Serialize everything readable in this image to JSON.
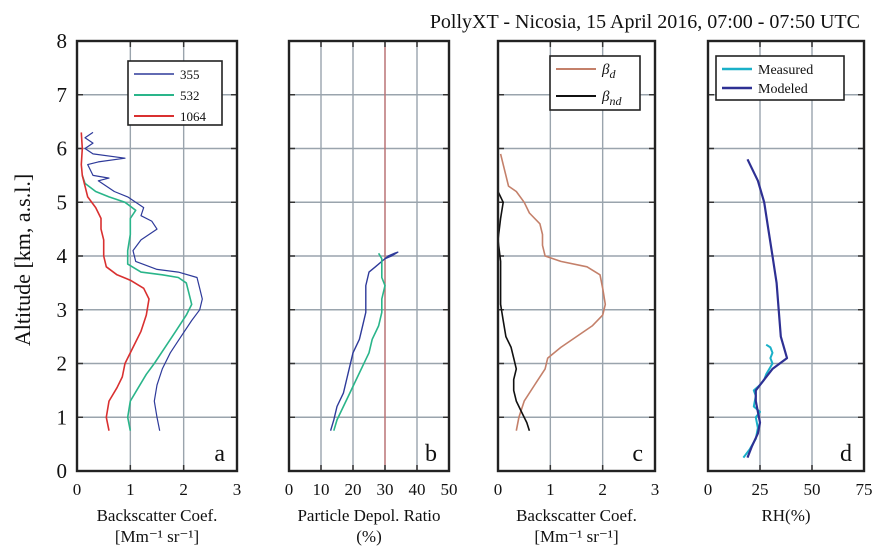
{
  "title": "PollyXT - Nicosia, 15 April 2016, 07:00 - 07:50 UTC",
  "ylabel": "Altitude  [km, a.s.l.]",
  "chart_data": [
    {
      "type": "line",
      "letter": "a",
      "xlabel_lines": [
        "Backscatter Coef.",
        "[Mm⁻¹ sr⁻¹]"
      ],
      "xlim": [
        0,
        3
      ],
      "xticks": [
        "0",
        "1",
        "2",
        "3"
      ],
      "ylim": [
        0,
        8
      ],
      "yticks": [
        "0",
        "1",
        "2",
        "3",
        "4",
        "5",
        "6",
        "7",
        "8"
      ],
      "grid": true,
      "legend": {
        "position": "top-right",
        "entries": [
          "355",
          "532",
          "1064"
        ]
      },
      "series": [
        {
          "name": "355",
          "color": "#2e3a9a",
          "width": 1.2,
          "points": [
            [
              1.55,
              0.75
            ],
            [
              1.5,
              1.0
            ],
            [
              1.45,
              1.3
            ],
            [
              1.5,
              1.6
            ],
            [
              1.6,
              1.9
            ],
            [
              1.75,
              2.2
            ],
            [
              1.95,
              2.5
            ],
            [
              2.15,
              2.8
            ],
            [
              2.3,
              3.0
            ],
            [
              2.35,
              3.2
            ],
            [
              2.3,
              3.4
            ],
            [
              2.25,
              3.6
            ],
            [
              1.9,
              3.7
            ],
            [
              1.5,
              3.75
            ],
            [
              1.1,
              3.9
            ],
            [
              1.05,
              4.1
            ],
            [
              1.2,
              4.3
            ],
            [
              1.35,
              4.4
            ],
            [
              1.5,
              4.5
            ],
            [
              1.4,
              4.65
            ],
            [
              1.2,
              4.75
            ],
            [
              1.25,
              4.9
            ],
            [
              1.1,
              5.0
            ],
            [
              0.95,
              5.1
            ],
            [
              0.7,
              5.2
            ],
            [
              0.55,
              5.3
            ],
            [
              0.4,
              5.4
            ],
            [
              0.6,
              5.45
            ],
            [
              0.3,
              5.5
            ],
            [
              0.2,
              5.7
            ],
            [
              0.4,
              5.75
            ],
            [
              0.9,
              5.82
            ],
            [
              0.3,
              5.9
            ],
            [
              0.15,
              6.0
            ],
            [
              0.3,
              6.1
            ],
            [
              0.15,
              6.2
            ],
            [
              0.3,
              6.3
            ]
          ]
        },
        {
          "name": "532",
          "color": "#2ab58a",
          "width": 1.6,
          "points": [
            [
              1.0,
              0.75
            ],
            [
              0.95,
              1.0
            ],
            [
              1.0,
              1.3
            ],
            [
              1.15,
              1.55
            ],
            [
              1.3,
              1.8
            ],
            [
              1.45,
              2.0
            ],
            [
              1.65,
              2.3
            ],
            [
              1.85,
              2.6
            ],
            [
              2.05,
              2.9
            ],
            [
              2.15,
              3.1
            ],
            [
              2.1,
              3.3
            ],
            [
              2.05,
              3.5
            ],
            [
              1.9,
              3.6
            ],
            [
              1.6,
              3.65
            ],
            [
              1.2,
              3.7
            ],
            [
              0.95,
              3.85
            ],
            [
              0.95,
              4.1
            ],
            [
              1.0,
              4.4
            ],
            [
              1.0,
              4.7
            ],
            [
              1.1,
              4.85
            ],
            [
              0.9,
              5.0
            ],
            [
              0.6,
              5.1
            ],
            [
              0.35,
              5.2
            ],
            [
              0.15,
              5.35
            ],
            [
              0.1,
              5.5
            ]
          ]
        },
        {
          "name": "1064",
          "color": "#d93030",
          "width": 1.6,
          "points": [
            [
              0.6,
              0.75
            ],
            [
              0.55,
              1.0
            ],
            [
              0.6,
              1.3
            ],
            [
              0.75,
              1.55
            ],
            [
              0.85,
              1.75
            ],
            [
              0.9,
              2.0
            ],
            [
              1.05,
              2.3
            ],
            [
              1.2,
              2.6
            ],
            [
              1.3,
              2.9
            ],
            [
              1.35,
              3.2
            ],
            [
              1.25,
              3.4
            ],
            [
              1.0,
              3.55
            ],
            [
              0.75,
              3.65
            ],
            [
              0.55,
              3.8
            ],
            [
              0.5,
              4.0
            ],
            [
              0.5,
              4.3
            ],
            [
              0.45,
              4.5
            ],
            [
              0.45,
              4.7
            ],
            [
              0.35,
              4.9
            ],
            [
              0.2,
              5.1
            ],
            [
              0.15,
              5.3
            ],
            [
              0.1,
              5.5
            ],
            [
              0.08,
              5.7
            ],
            [
              0.1,
              6.0
            ],
            [
              0.08,
              6.3
            ]
          ]
        }
      ]
    },
    {
      "type": "line",
      "letter": "b",
      "xlabel_lines": [
        "Particle Depol. Ratio",
        "(%)"
      ],
      "xlim": [
        0,
        50
      ],
      "xticks": [
        "0",
        "10",
        "20",
        "30",
        "40",
        "50"
      ],
      "ylim": [
        0,
        8
      ],
      "grid": true,
      "reference_x": 30,
      "series": [
        {
          "color": "#2e3a9a",
          "width": 1.4,
          "points": [
            [
              13,
              0.75
            ],
            [
              14,
              0.95
            ],
            [
              15,
              1.2
            ],
            [
              17,
              1.45
            ],
            [
              18,
              1.7
            ],
            [
              19,
              1.95
            ],
            [
              20,
              2.2
            ],
            [
              22,
              2.45
            ],
            [
              23,
              2.7
            ],
            [
              24,
              2.95
            ],
            [
              24,
              3.2
            ],
            [
              24,
              3.45
            ],
            [
              25,
              3.7
            ],
            [
              27,
              3.8
            ],
            [
              29,
              3.9
            ],
            [
              31,
              4.0
            ],
            [
              33,
              4.05
            ],
            [
              34,
              4.07
            ],
            [
              32,
              4.0
            ],
            [
              30,
              3.95
            ]
          ]
        },
        {
          "color": "#2ab58a",
          "width": 1.6,
          "points": [
            [
              14,
              0.75
            ],
            [
              15,
              0.95
            ],
            [
              17,
              1.2
            ],
            [
              19,
              1.45
            ],
            [
              21,
              1.7
            ],
            [
              23,
              1.95
            ],
            [
              25,
              2.2
            ],
            [
              26,
              2.45
            ],
            [
              28,
              2.7
            ],
            [
              29,
              2.95
            ],
            [
              29,
              3.2
            ],
            [
              30,
              3.45
            ],
            [
              29,
              3.6
            ],
            [
              29,
              3.8
            ],
            [
              29,
              3.95
            ],
            [
              28,
              4.05
            ]
          ]
        }
      ]
    },
    {
      "type": "line",
      "letter": "c",
      "xlabel_lines": [
        "Backscatter Coef.",
        "[Mm⁻¹ sr⁻¹]"
      ],
      "xlim": [
        0,
        3
      ],
      "xticks": [
        "0",
        "1",
        "2",
        "3"
      ],
      "ylim": [
        0,
        8
      ],
      "grid": true,
      "legend": {
        "position": "top-right",
        "entries": [
          "βd",
          "βnd"
        ]
      },
      "series": [
        {
          "name": "βd",
          "color": "#c4806a",
          "width": 1.6,
          "points": [
            [
              0.35,
              0.75
            ],
            [
              0.4,
              1.0
            ],
            [
              0.5,
              1.3
            ],
            [
              0.7,
              1.6
            ],
            [
              0.9,
              1.9
            ],
            [
              0.95,
              2.1
            ],
            [
              1.2,
              2.3
            ],
            [
              1.5,
              2.5
            ],
            [
              1.8,
              2.7
            ],
            [
              2.0,
              2.9
            ],
            [
              2.05,
              3.1
            ],
            [
              2.0,
              3.4
            ],
            [
              1.95,
              3.65
            ],
            [
              1.7,
              3.8
            ],
            [
              1.2,
              3.9
            ],
            [
              0.9,
              4.0
            ],
            [
              0.85,
              4.2
            ],
            [
              0.85,
              4.4
            ],
            [
              0.8,
              4.6
            ],
            [
              0.6,
              4.8
            ],
            [
              0.5,
              5.0
            ],
            [
              0.35,
              5.2
            ],
            [
              0.2,
              5.3
            ],
            [
              0.15,
              5.5
            ],
            [
              0.1,
              5.7
            ],
            [
              0.05,
              5.9
            ]
          ]
        },
        {
          "name": "βnd",
          "color": "#111111",
          "width": 1.6,
          "points": [
            [
              0.6,
              0.75
            ],
            [
              0.55,
              0.9
            ],
            [
              0.45,
              1.1
            ],
            [
              0.35,
              1.3
            ],
            [
              0.3,
              1.5
            ],
            [
              0.3,
              1.7
            ],
            [
              0.35,
              1.9
            ],
            [
              0.3,
              2.1
            ],
            [
              0.25,
              2.3
            ],
            [
              0.15,
              2.5
            ],
            [
              0.1,
              2.8
            ],
            [
              0.05,
              3.1
            ],
            [
              0.05,
              3.5
            ],
            [
              0.05,
              3.9
            ],
            [
              0.0,
              4.3
            ],
            [
              0.05,
              4.7
            ],
            [
              0.1,
              5.0
            ],
            [
              0.0,
              5.2
            ]
          ]
        }
      ]
    },
    {
      "type": "line",
      "letter": "d",
      "xlabel_lines": [
        "RH(%)"
      ],
      "xlim": [
        0,
        75
      ],
      "xticks": [
        "0",
        "25",
        "50",
        "75"
      ],
      "ylim": [
        0,
        8
      ],
      "grid": true,
      "legend": {
        "position": "top-left",
        "entries": [
          "Measured",
          "Modeled"
        ]
      },
      "series": [
        {
          "name": "Measured",
          "color": "#1ab0c8",
          "width": 2.0,
          "points": [
            [
              17,
              0.25
            ],
            [
              20,
              0.4
            ],
            [
              23,
              0.6
            ],
            [
              24,
              0.8
            ],
            [
              23,
              1.0
            ],
            [
              25,
              1.1
            ],
            [
              22,
              1.2
            ],
            [
              23,
              1.4
            ],
            [
              22,
              1.5
            ],
            [
              25,
              1.6
            ],
            [
              27,
              1.7
            ],
            [
              28,
              1.8
            ],
            [
              31,
              2.0
            ],
            [
              30,
              2.1
            ],
            [
              31,
              2.2
            ],
            [
              30,
              2.3
            ],
            [
              28,
              2.35
            ]
          ]
        },
        {
          "name": "Modeled",
          "color": "#2e3093",
          "width": 2.2,
          "points": [
            [
              19,
              0.25
            ],
            [
              21,
              0.45
            ],
            [
              24,
              0.7
            ],
            [
              25,
              0.9
            ],
            [
              24,
              1.1
            ],
            [
              23,
              1.3
            ],
            [
              23,
              1.5
            ],
            [
              27,
              1.7
            ],
            [
              31,
              1.9
            ],
            [
              38,
              2.1
            ],
            [
              35,
              2.5
            ],
            [
              34,
              3.0
            ],
            [
              33,
              3.5
            ],
            [
              31,
              4.0
            ],
            [
              29,
              4.5
            ],
            [
              27,
              5.0
            ],
            [
              24,
              5.4
            ],
            [
              19,
              5.8
            ]
          ]
        }
      ]
    }
  ]
}
